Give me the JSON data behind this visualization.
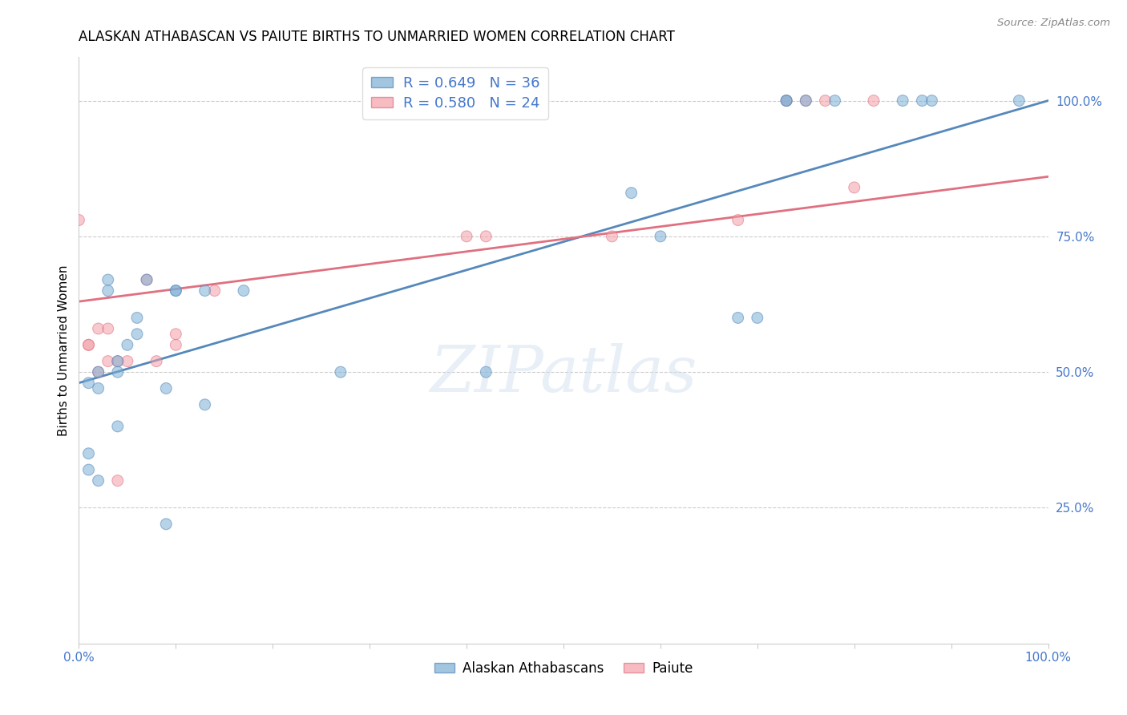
{
  "title": "ALASKAN ATHABASCAN VS PAIUTE BIRTHS TO UNMARRIED WOMEN CORRELATION CHART",
  "source": "Source: ZipAtlas.com",
  "ylabel": "Births to Unmarried Women",
  "legend_blue": "R = 0.649   N = 36",
  "legend_pink": "R = 0.580   N = 24",
  "legend_label_blue": "Alaskan Athabascans",
  "legend_label_pink": "Paiute",
  "blue_color": "#7BAFD4",
  "pink_color": "#F4A0A8",
  "blue_line_color": "#5588BB",
  "pink_line_color": "#E07080",
  "watermark_color": "#DDEEFF",
  "ytick_color": "#4477CC",
  "xtick_color": "#4477CC",
  "blue_x": [
    0.01,
    0.02,
    0.02,
    0.03,
    0.03,
    0.04,
    0.04,
    0.05,
    0.06,
    0.06,
    0.07,
    0.09,
    0.1,
    0.1,
    0.13,
    0.17,
    0.27,
    0.42,
    0.57,
    0.6,
    0.68,
    0.7,
    0.73,
    0.73,
    0.75,
    0.78,
    0.85,
    0.87,
    0.88,
    0.97,
    0.01,
    0.01,
    0.02,
    0.04,
    0.09,
    0.13
  ],
  "blue_y": [
    0.48,
    0.47,
    0.5,
    0.65,
    0.67,
    0.5,
    0.52,
    0.55,
    0.57,
    0.6,
    0.67,
    0.47,
    0.65,
    0.65,
    0.65,
    0.65,
    0.5,
    0.5,
    0.83,
    0.75,
    0.6,
    0.6,
    1.0,
    1.0,
    1.0,
    1.0,
    1.0,
    1.0,
    1.0,
    1.0,
    0.32,
    0.35,
    0.3,
    0.4,
    0.22,
    0.44
  ],
  "blue_sizes": [
    100,
    100,
    100,
    100,
    100,
    100,
    100,
    100,
    100,
    100,
    100,
    100,
    100,
    100,
    100,
    100,
    100,
    100,
    100,
    100,
    100,
    100,
    100,
    100,
    100,
    100,
    100,
    100,
    100,
    100,
    100,
    100,
    100,
    100,
    100,
    100
  ],
  "pink_x": [
    0.0,
    0.01,
    0.02,
    0.03,
    0.04,
    0.05,
    0.07,
    0.08,
    0.1,
    0.1,
    0.14,
    0.4,
    0.42,
    0.55,
    0.68,
    0.73,
    0.75,
    0.77,
    0.8,
    0.82,
    0.01,
    0.02,
    0.03,
    0.04
  ],
  "pink_y": [
    0.78,
    0.55,
    0.5,
    0.52,
    0.3,
    0.52,
    0.67,
    0.52,
    0.55,
    0.57,
    0.65,
    0.75,
    0.75,
    0.75,
    0.78,
    1.0,
    1.0,
    1.0,
    0.84,
    1.0,
    0.55,
    0.58,
    0.58,
    0.52
  ],
  "pink_sizes": [
    100,
    100,
    100,
    100,
    100,
    100,
    100,
    100,
    100,
    100,
    100,
    100,
    100,
    100,
    100,
    100,
    100,
    100,
    100,
    100,
    100,
    100,
    100,
    100
  ],
  "blue_intercept": 0.48,
  "blue_slope": 0.52,
  "pink_intercept": 0.63,
  "pink_slope": 0.23,
  "ytick_values": [
    0.0,
    0.25,
    0.5,
    0.75,
    1.0
  ],
  "ytick_labels": [
    "",
    "25.0%",
    "50.0%",
    "75.0%",
    "100.0%"
  ]
}
